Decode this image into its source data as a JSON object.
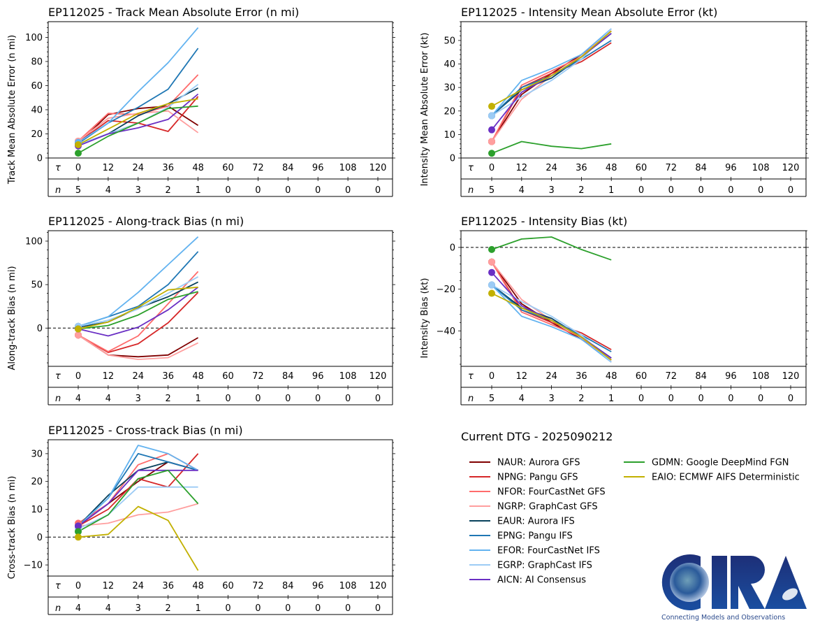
{
  "storm_id": "EP112025",
  "current_dtg_label": "Current DTG - 2025090212",
  "logo": {
    "text": "CIRA",
    "tagline": "Connecting Models and Observations"
  },
  "models": [
    {
      "code": "NAUR",
      "label": "NAUR: Aurora GFS",
      "color": "#800000"
    },
    {
      "code": "NPNG",
      "label": "NPNG: Pangu GFS",
      "color": "#d62728"
    },
    {
      "code": "NFOR",
      "label": "NFOR: FourCastNet GFS",
      "color": "#ff6b6b"
    },
    {
      "code": "NGRP",
      "label": "NGRP: GraphCast GFS",
      "color": "#ff9e9e"
    },
    {
      "code": "EAUR",
      "label": "EAUR: Aurora IFS",
      "color": "#08415c"
    },
    {
      "code": "EPNG",
      "label": "EPNG: Pangu IFS",
      "color": "#1f77b4"
    },
    {
      "code": "EFOR",
      "label": "EFOR: FourCastNet IFS",
      "color": "#63b3f0"
    },
    {
      "code": "EGRP",
      "label": "EGRP: GraphCast IFS",
      "color": "#9ccbf5"
    },
    {
      "code": "AICN",
      "label": "AICN: AI Consensus",
      "color": "#6a2fc4"
    },
    {
      "code": "GDMN",
      "label": "GDMN: Google DeepMind FGN",
      "color": "#2ca02c"
    },
    {
      "code": "EAIO",
      "label": "EAIO: ECMWF AIFS Deterministic",
      "color": "#c2b000"
    }
  ],
  "chart_data": [
    {
      "id": "track_mae",
      "type": "line",
      "title": "EP112025 - Track Mean Absolute Error (n mi)",
      "xlabel": "τ",
      "ylabel": "Track Mean Absolute Error (n mi)",
      "x": [
        0,
        12,
        24,
        36,
        48
      ],
      "x_ticks": [
        0,
        12,
        24,
        36,
        48,
        60,
        72,
        84,
        96,
        108,
        120
      ],
      "n_label": "n",
      "n_counts": [
        5,
        4,
        3,
        2,
        1,
        0,
        0,
        0,
        0,
        0,
        0
      ],
      "ylim": [
        0,
        113
      ],
      "y_ticks": [
        0,
        20,
        40,
        60,
        80,
        100
      ],
      "zero_line": false,
      "series": [
        {
          "name": "NAUR",
          "values": [
            12,
            36,
            41,
            43,
            27
          ]
        },
        {
          "name": "NPNG",
          "values": [
            13,
            31,
            29,
            22,
            51
          ]
        },
        {
          "name": "NFOR",
          "values": [
            14,
            37,
            36,
            43,
            69
          ]
        },
        {
          "name": "NGRP",
          "values": [
            14,
            33,
            37,
            39,
            21
          ]
        },
        {
          "name": "EAUR",
          "values": [
            11,
            20,
            35,
            45,
            58
          ]
        },
        {
          "name": "EPNG",
          "values": [
            12,
            29,
            42,
            57,
            91
          ]
        },
        {
          "name": "EFOR",
          "values": [
            13,
            29,
            55,
            79,
            108
          ]
        },
        {
          "name": "EGRP",
          "values": [
            11,
            20,
            29,
            42,
            61
          ]
        },
        {
          "name": "AICN",
          "values": [
            10,
            20,
            25,
            32,
            53
          ]
        },
        {
          "name": "GDMN",
          "values": [
            4,
            18,
            29,
            41,
            43
          ]
        },
        {
          "name": "EAIO",
          "values": [
            11,
            24,
            37,
            45,
            49
          ]
        }
      ]
    },
    {
      "id": "intensity_mae",
      "type": "line",
      "title": "EP112025 - Intensity Mean Absolute Error (kt)",
      "xlabel": "τ",
      "ylabel": "Intensity Mean Absolute Error (kt)",
      "x": [
        0,
        12,
        24,
        36,
        48
      ],
      "x_ticks": [
        0,
        12,
        24,
        36,
        48,
        60,
        72,
        84,
        96,
        108,
        120
      ],
      "n_label": "n",
      "n_counts": [
        5,
        4,
        3,
        2,
        1,
        0,
        0,
        0,
        0,
        0,
        0
      ],
      "ylim": [
        0,
        58
      ],
      "y_ticks": [
        0,
        10,
        20,
        30,
        40,
        50
      ],
      "zero_line": false,
      "series": [
        {
          "name": "NAUR",
          "values": [
            7,
            27,
            36,
            44,
            54
          ]
        },
        {
          "name": "NPNG",
          "values": [
            7,
            30,
            36,
            41,
            49
          ]
        },
        {
          "name": "NFOR",
          "values": [
            7,
            31,
            37,
            43,
            54
          ]
        },
        {
          "name": "NGRP",
          "values": [
            7,
            25,
            35,
            43,
            55
          ]
        },
        {
          "name": "EAUR",
          "values": [
            18,
            29,
            34,
            43,
            53
          ]
        },
        {
          "name": "EPNG",
          "values": [
            18,
            30,
            35,
            42,
            50
          ]
        },
        {
          "name": "EFOR",
          "values": [
            18,
            33,
            38,
            44,
            55
          ]
        },
        {
          "name": "EGRP",
          "values": [
            18,
            26,
            33,
            42,
            55
          ]
        },
        {
          "name": "AICN",
          "values": [
            12,
            28,
            35,
            43,
            53
          ]
        },
        {
          "name": "GDMN",
          "values": [
            2,
            7,
            5,
            4,
            6
          ]
        },
        {
          "name": "EAIO",
          "values": [
            22,
            29,
            35,
            43,
            54
          ]
        }
      ]
    },
    {
      "id": "along_track_bias",
      "type": "line",
      "title": "EP112025 - Along-track Bias (n mi)",
      "xlabel": "τ",
      "ylabel": "Along-track Bias (n mi)",
      "x": [
        0,
        12,
        24,
        36,
        48
      ],
      "x_ticks": [
        0,
        12,
        24,
        36,
        48,
        60,
        72,
        84,
        96,
        108,
        120
      ],
      "n_label": "n",
      "n_counts": [
        4,
        4,
        3,
        2,
        1,
        0,
        0,
        0,
        0,
        0,
        0
      ],
      "ylim": [
        -44,
        112
      ],
      "y_ticks": [
        0,
        50,
        100
      ],
      "zero_line": true,
      "series": [
        {
          "name": "NAUR",
          "values": [
            -8,
            -31,
            -33,
            -31,
            -11
          ]
        },
        {
          "name": "NPNG",
          "values": [
            -8,
            -28,
            -18,
            6,
            41
          ]
        },
        {
          "name": "NFOR",
          "values": [
            -8,
            -27,
            -9,
            28,
            65
          ]
        },
        {
          "name": "NGRP",
          "values": [
            -8,
            -31,
            -36,
            -34,
            -17
          ]
        },
        {
          "name": "EAUR",
          "values": [
            1,
            7,
            23,
            36,
            53
          ]
        },
        {
          "name": "EPNG",
          "values": [
            2,
            13,
            25,
            50,
            88
          ]
        },
        {
          "name": "EFOR",
          "values": [
            2,
            13,
            41,
            73,
            105
          ]
        },
        {
          "name": "EGRP",
          "values": [
            2,
            9,
            22,
            40,
            59
          ]
        },
        {
          "name": "AICN",
          "values": [
            -1,
            -9,
            1,
            21,
            47
          ]
        },
        {
          "name": "GDMN",
          "values": [
            -1,
            3,
            15,
            33,
            42
          ]
        },
        {
          "name": "EAIO",
          "values": [
            -1,
            7,
            24,
            44,
            47
          ]
        }
      ]
    },
    {
      "id": "intensity_bias",
      "type": "line",
      "title": "EP112025 - Intensity Bias (kt)",
      "xlabel": "τ",
      "ylabel": "Intensity Bias (kt)",
      "x": [
        0,
        12,
        24,
        36,
        48
      ],
      "x_ticks": [
        0,
        12,
        24,
        36,
        48,
        60,
        72,
        84,
        96,
        108,
        120
      ],
      "n_label": "n",
      "n_counts": [
        5,
        4,
        3,
        2,
        1,
        0,
        0,
        0,
        0,
        0,
        0
      ],
      "ylim": [
        -57,
        8
      ],
      "y_ticks": [
        -40,
        -20,
        0
      ],
      "zero_line": true,
      "series": [
        {
          "name": "NAUR",
          "values": [
            -7,
            -27,
            -36,
            -44,
            -54
          ]
        },
        {
          "name": "NPNG",
          "values": [
            -7,
            -30,
            -36,
            -41,
            -49
          ]
        },
        {
          "name": "NFOR",
          "values": [
            -7,
            -31,
            -37,
            -43,
            -54
          ]
        },
        {
          "name": "NGRP",
          "values": [
            -7,
            -25,
            -35,
            -43,
            -55
          ]
        },
        {
          "name": "EAUR",
          "values": [
            -18,
            -29,
            -34,
            -43,
            -53
          ]
        },
        {
          "name": "EPNG",
          "values": [
            -18,
            -30,
            -35,
            -42,
            -50
          ]
        },
        {
          "name": "EFOR",
          "values": [
            -18,
            -33,
            -38,
            -44,
            -55
          ]
        },
        {
          "name": "EGRP",
          "values": [
            -18,
            -26,
            -33,
            -42,
            -55
          ]
        },
        {
          "name": "AICN",
          "values": [
            -12,
            -28,
            -35,
            -43,
            -53
          ]
        },
        {
          "name": "GDMN",
          "values": [
            -1,
            4,
            5,
            -1,
            -6
          ]
        },
        {
          "name": "EAIO",
          "values": [
            -22,
            -29,
            -35,
            -43,
            -54
          ]
        }
      ]
    },
    {
      "id": "cross_track_bias",
      "type": "line",
      "title": "EP112025 - Cross-track Bias (n mi)",
      "xlabel": "τ",
      "ylabel": "Cross-track Bias (n mi)",
      "x": [
        0,
        12,
        24,
        36,
        48
      ],
      "x_ticks": [
        0,
        12,
        24,
        36,
        48,
        60,
        72,
        84,
        96,
        108,
        120
      ],
      "n_label": "n",
      "n_counts": [
        4,
        4,
        3,
        2,
        1,
        0,
        0,
        0,
        0,
        0,
        0
      ],
      "ylim": [
        -14,
        35
      ],
      "y_ticks": [
        -10,
        0,
        10,
        20,
        30
      ],
      "zero_line": true,
      "series": [
        {
          "name": "NAUR",
          "values": [
            4,
            12,
            20,
            27,
            24
          ]
        },
        {
          "name": "NPNG",
          "values": [
            4,
            10,
            21,
            18,
            30
          ]
        },
        {
          "name": "NFOR",
          "values": [
            5,
            12,
            26,
            30,
            24
          ]
        },
        {
          "name": "NGRP",
          "values": [
            4,
            5,
            8,
            9,
            12
          ]
        },
        {
          "name": "EAUR",
          "values": [
            4,
            15,
            24,
            27,
            24
          ]
        },
        {
          "name": "EPNG",
          "values": [
            4,
            14,
            30,
            27,
            24
          ]
        },
        {
          "name": "EFOR",
          "values": [
            4,
            14,
            33,
            30,
            24
          ]
        },
        {
          "name": "EGRP",
          "values": [
            3,
            8,
            18,
            18,
            18
          ]
        },
        {
          "name": "AICN",
          "values": [
            4,
            12,
            24,
            24,
            24
          ]
        },
        {
          "name": "GDMN",
          "values": [
            2,
            8,
            21,
            24,
            12
          ]
        },
        {
          "name": "EAIO",
          "values": [
            0,
            1,
            11,
            6,
            -12
          ]
        }
      ]
    }
  ]
}
